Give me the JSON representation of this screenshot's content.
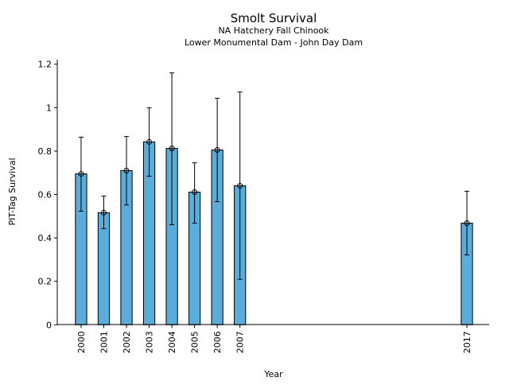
{
  "chart_data": {
    "type": "bar",
    "title": "Smolt Survival",
    "subtitle": "NA Hatchery Fall Chinook",
    "subtitle2": "Lower Monumental Dam - John Day Dam",
    "xlabel": "Year",
    "ylabel": "PIT-Tag Survival",
    "categories": [
      "2000",
      "2001",
      "2002",
      "2003",
      "2004",
      "2005",
      "2006",
      "2007",
      "2017"
    ],
    "x": [
      2000,
      2001,
      2002,
      2003,
      2004,
      2005,
      2006,
      2007,
      2017
    ],
    "values": [
      0.695,
      0.516,
      0.71,
      0.842,
      0.812,
      0.611,
      0.805,
      0.64,
      0.468
    ],
    "err_upper": [
      0.864,
      0.593,
      0.867,
      0.999,
      1.16,
      0.746,
      1.043,
      1.072,
      0.615
    ],
    "err_lower": [
      0.523,
      0.443,
      0.552,
      0.684,
      0.461,
      0.468,
      0.567,
      0.209,
      0.322
    ],
    "ylim": [
      0,
      1.2
    ],
    "xlim": [
      1998.95,
      2017.98
    ],
    "yticks": [
      0,
      0.2,
      0.4,
      0.6,
      0.8,
      1,
      1.2
    ],
    "ytick_labels": [
      "0",
      "0.2",
      "0.4",
      "0.6",
      "0.8",
      "1",
      "1.2"
    ],
    "bar_color": "#5aadd8",
    "grid": false
  }
}
